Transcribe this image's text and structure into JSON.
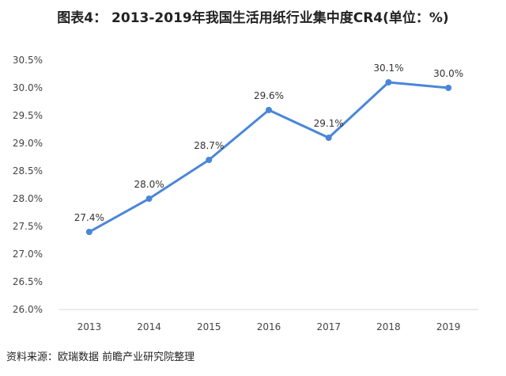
{
  "chart_data": {
    "type": "line",
    "title": "图表4： 2013-2019年我国生活用纸行业集中度CR4(单位：%)",
    "xlabel": "",
    "ylabel": "",
    "x": [
      "2013",
      "2014",
      "2015",
      "2016",
      "2017",
      "2018",
      "2019"
    ],
    "series": [
      {
        "values": [
          27.4,
          28.0,
          28.7,
          29.6,
          29.1,
          30.1,
          30.0
        ],
        "data_labels": [
          "27.4%",
          "28.0%",
          "28.7%",
          "29.6%",
          "29.1%",
          "30.1%",
          "30.0%"
        ]
      }
    ],
    "ylim": [
      26.0,
      30.5
    ],
    "yticks": [
      26.0,
      26.5,
      27.0,
      27.5,
      28.0,
      28.5,
      29.0,
      29.5,
      30.0,
      30.5
    ],
    "ytick_labels": [
      "26.0%",
      "26.5%",
      "27.0%",
      "27.5%",
      "28.0%",
      "28.5%",
      "29.0%",
      "29.5%",
      "30.0%",
      "30.5%"
    ],
    "grid": false,
    "line_color": "#4a86d8",
    "axis_color": "#d9d9d9"
  },
  "source": "资料来源：欧瑞数据 前瞻产业研究院整理"
}
